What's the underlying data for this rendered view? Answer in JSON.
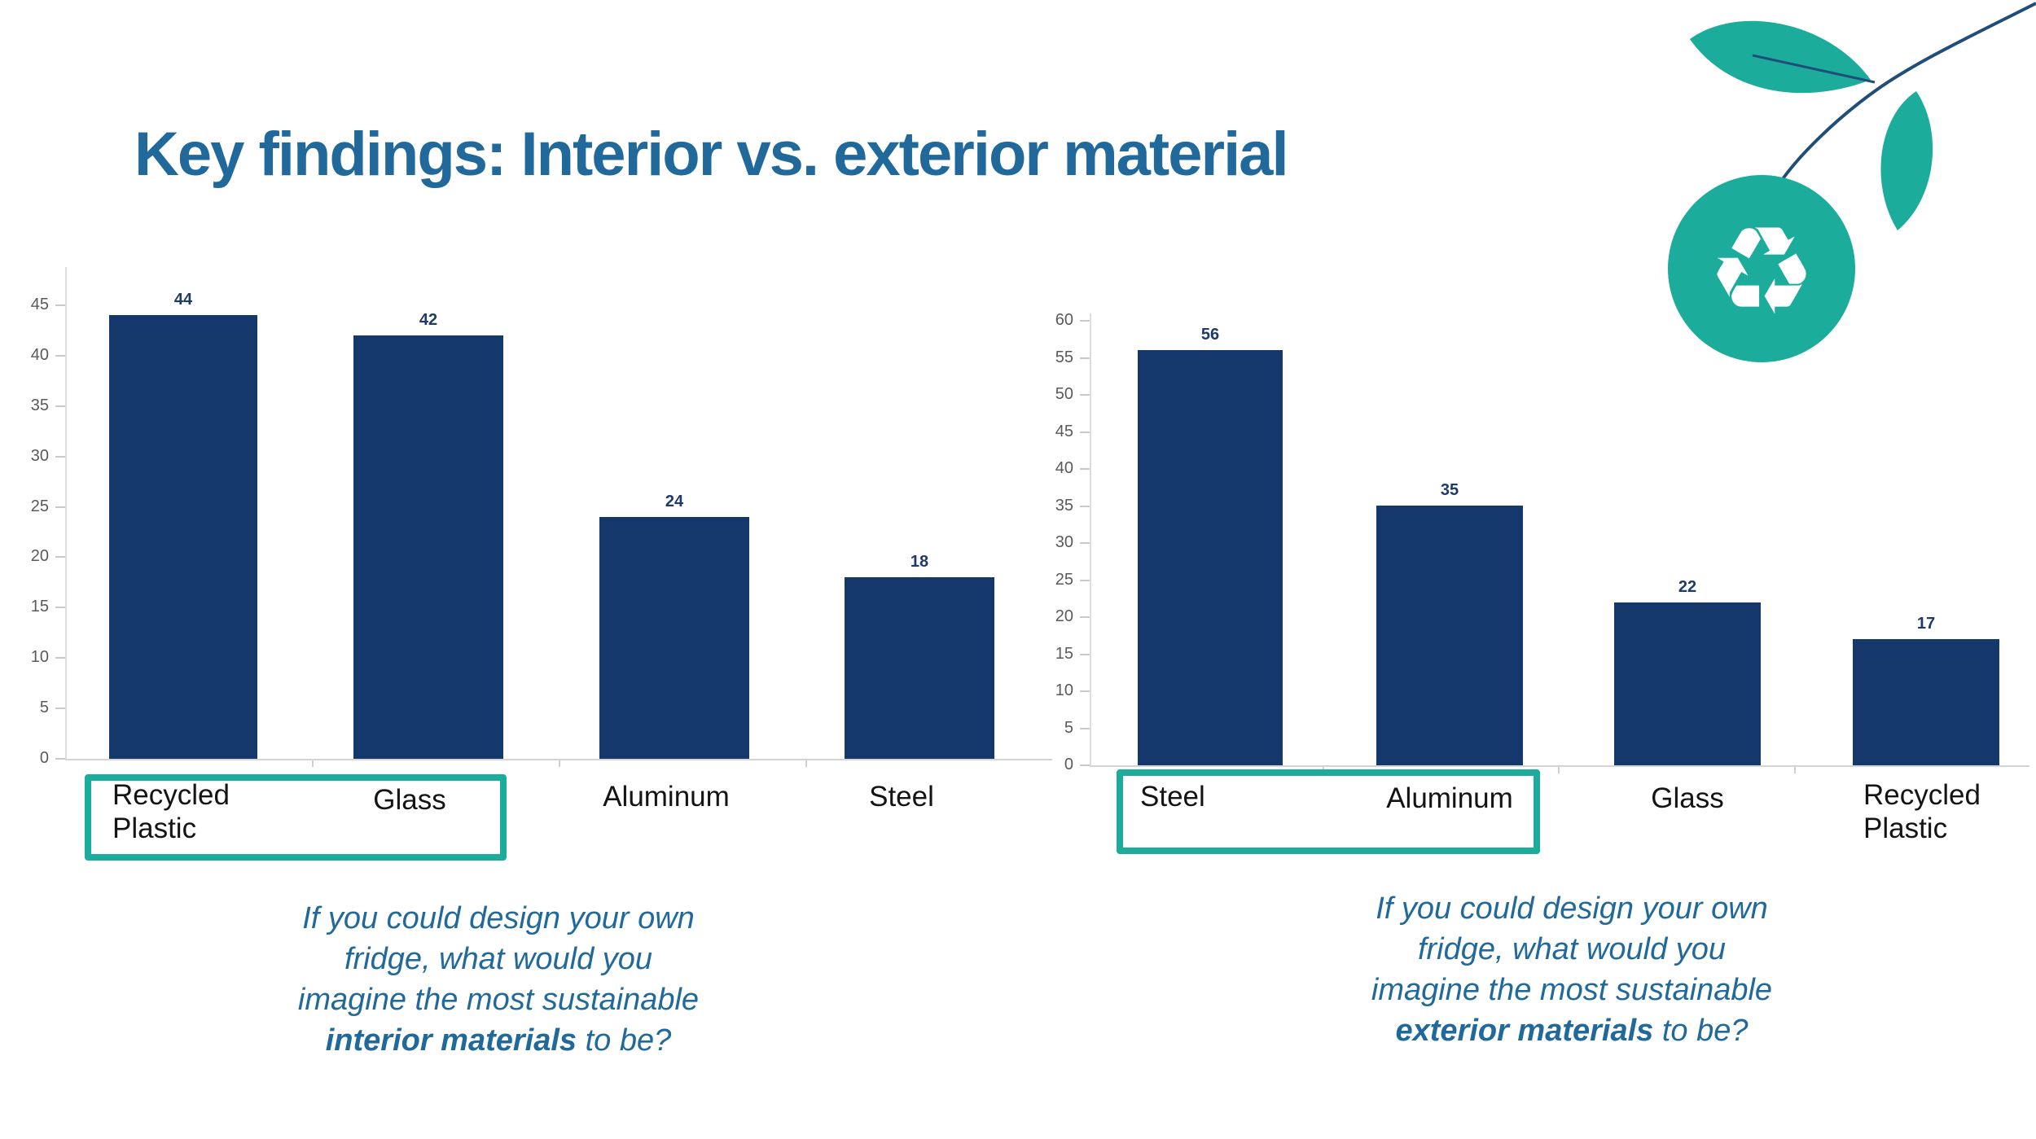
{
  "title": "Key findings: Interior vs. exterior material",
  "colors": {
    "title_blue": "#21699A",
    "bar_navy": "#14386B",
    "accent_teal": "#1CAC9B",
    "stem_navy": "#1F4E79",
    "axis_text_gray": "#5A5A5A",
    "category_text": "#141414"
  },
  "icons": {
    "recycle_symbol": "♻"
  },
  "chart_data": [
    {
      "type": "bar",
      "title": "",
      "xlabel": "",
      "ylabel": "",
      "categories": [
        "Recycled Plastic",
        "Glass",
        "Aluminum",
        "Steel"
      ],
      "values": [
        44,
        42,
        24,
        18
      ],
      "yticks": [
        0,
        5,
        10,
        15,
        20,
        25,
        30,
        35,
        40,
        45
      ],
      "ylim": [
        0,
        49
      ],
      "grid": false,
      "legend_position": "none",
      "bar_color": "#14386B",
      "highlighted_categories": [
        "Recycled Plastic",
        "Glass"
      ],
      "annotation": "If you could design your own fridge, what would you imagine the most sustainable interior materials to be?"
    },
    {
      "type": "bar",
      "title": "",
      "xlabel": "",
      "ylabel": "",
      "categories": [
        "Steel",
        "Aluminum",
        "Glass",
        "Recycled Plastic"
      ],
      "values": [
        56,
        35,
        22,
        17
      ],
      "yticks": [
        0,
        5,
        10,
        15,
        20,
        25,
        30,
        35,
        40,
        45,
        50,
        55,
        60
      ],
      "ylim": [
        0,
        63
      ],
      "grid": false,
      "legend_position": "none",
      "bar_color": "#14386B",
      "highlighted_categories": [
        "Steel",
        "Aluminum"
      ],
      "annotation": "If you could design your own fridge, what would you imagine the most sustainable exterior materials to be?"
    }
  ],
  "captions": {
    "left": {
      "lines": [
        "If you could design your own",
        "fridge, what would you",
        "imagine the most sustainable"
      ],
      "bold": "interior materials",
      "tail": " to be?"
    },
    "right": {
      "lines": [
        "If you could design your own",
        "fridge, what would you",
        "imagine the most sustainable"
      ],
      "bold": "exterior materials",
      "tail": " to be?"
    }
  }
}
